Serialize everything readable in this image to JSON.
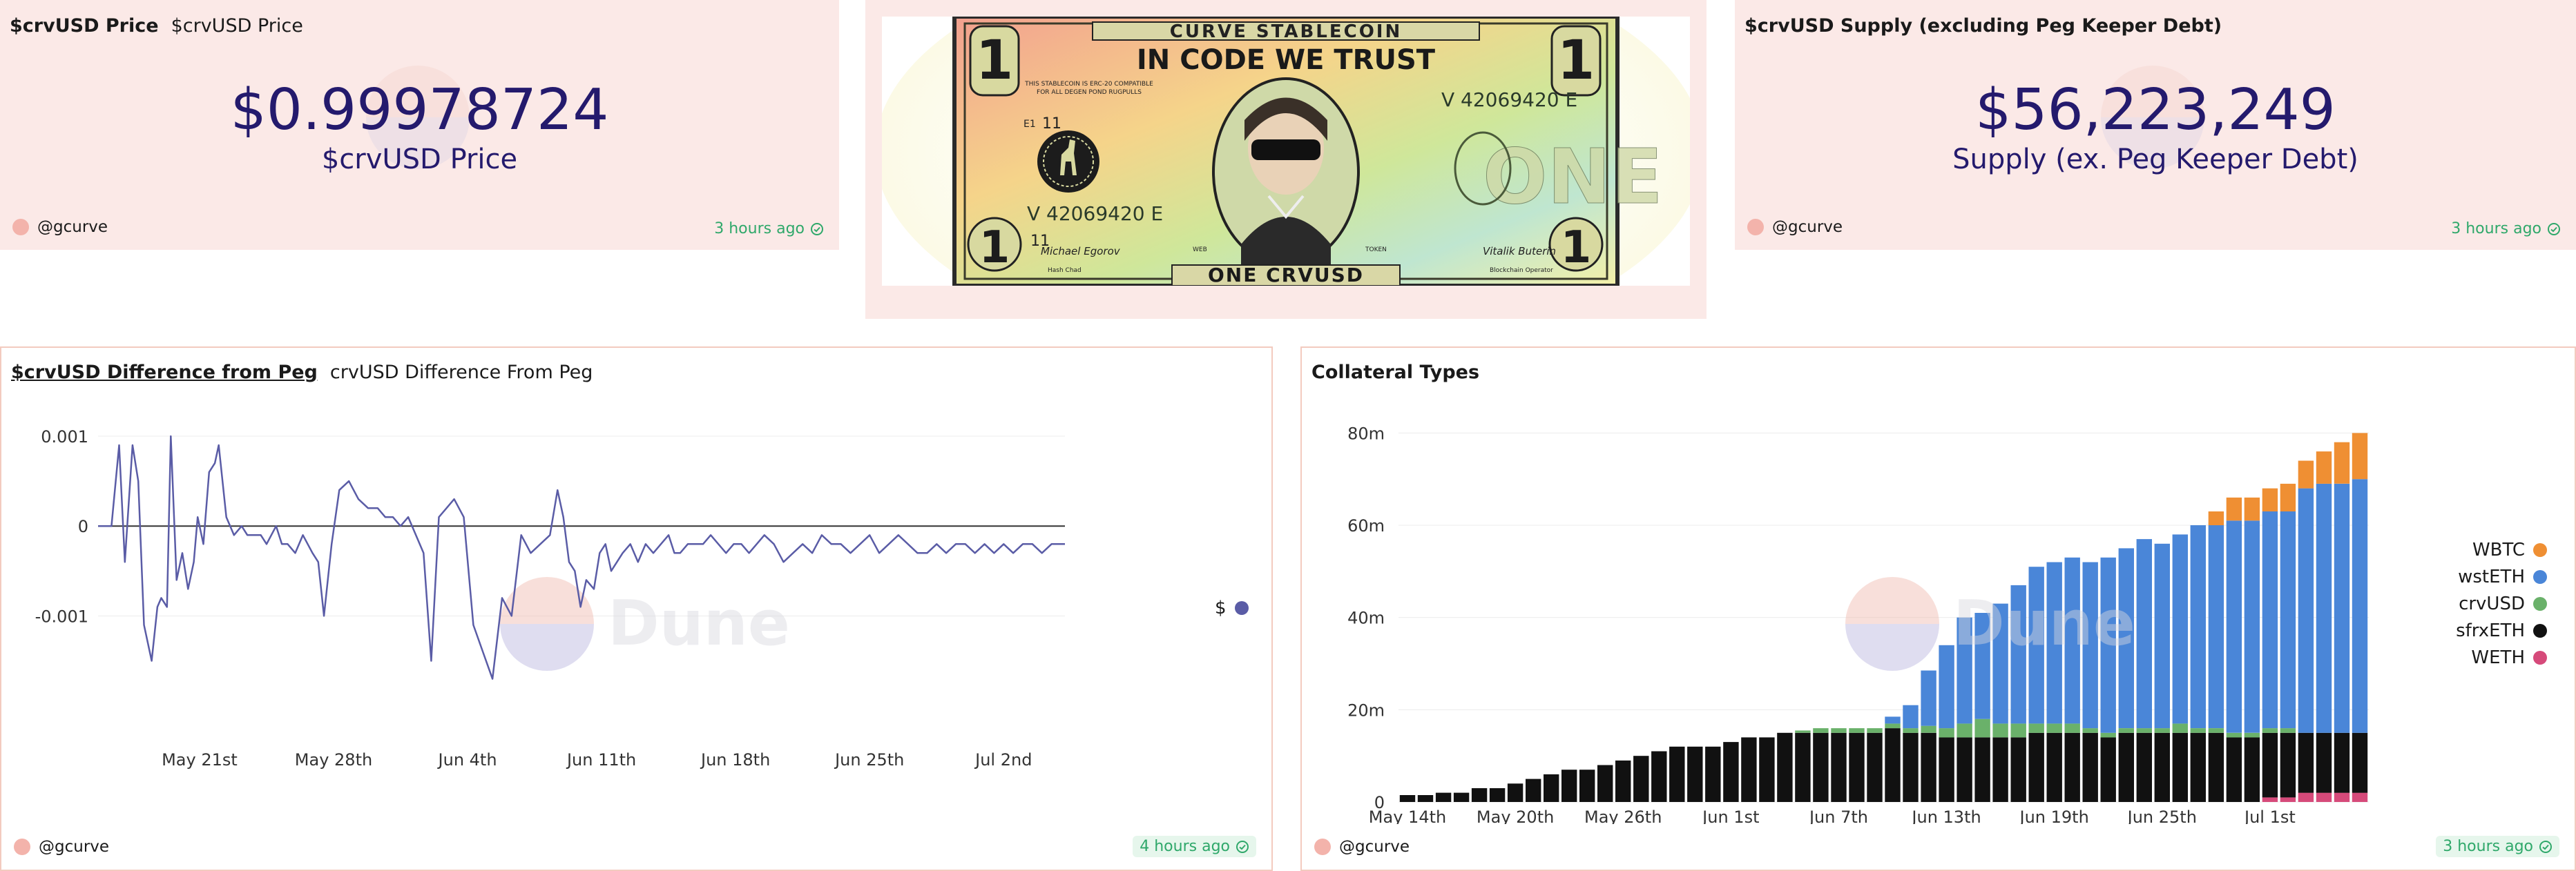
{
  "price_card": {
    "query_title": "$crvUSD Price",
    "viz_title": "$crvUSD Price",
    "value": "$0.99978724",
    "label": "$crvUSD Price",
    "author": "@gcurve",
    "updated": "3 hours ago"
  },
  "bill_card": {
    "top_banner": "CURVE STABLECOIN",
    "motto": "IN CODE WE TRUST",
    "serial": "V 42069420 E",
    "fine_print_1": "THIS STABLECOIN IS ERC-20 COMPATIBLE",
    "fine_print_2": "FOR ALL DEGEN POND RUGPULLS",
    "left_signature": "Michael Egorov",
    "right_signature": "Vitalik Buterin",
    "left_sub": "Hash Chad",
    "right_sub": "Blockchain Operator",
    "bottom_banner": "ONE CRVUSD",
    "corner_number": "1",
    "mark_left": "E1",
    "mark_num": "11",
    "center_word": "ONE",
    "side_left": "WEB",
    "side_right": "TOKEN"
  },
  "supply_card": {
    "query_title": "$crvUSD Supply (excluding Peg Keeper Debt)",
    "value": "$56,223,249",
    "label": "Supply (ex. Peg Keeper Debt)",
    "author": "@gcurve",
    "updated": "3 hours ago"
  },
  "peg_card": {
    "query_title": "$crvUSD Difference from Peg",
    "viz_title": "crvUSD Difference From Peg",
    "author": "@gcurve",
    "updated": "4 hours ago",
    "watermark": "Dune",
    "legend": [
      {
        "name": "$",
        "color": "#5a5ca6"
      }
    ]
  },
  "collateral_card": {
    "query_title": "Collateral Types",
    "author": "@gcurve",
    "updated": "3 hours ago",
    "watermark": "Dune",
    "legend": [
      {
        "name": "WBTC",
        "color": "#ef8f33"
      },
      {
        "name": "wstETH",
        "color": "#4a86d8"
      },
      {
        "name": "crvUSD",
        "color": "#6ab16a"
      },
      {
        "name": "sfrxETH",
        "color": "#111111"
      },
      {
        "name": "WETH",
        "color": "#d64a7a"
      }
    ]
  },
  "chart_data": [
    {
      "type": "line",
      "y_ticks": [
        0.001,
        0,
        -0.001
      ],
      "y_tick_labels": [
        "0.001",
        "0",
        "-0.001"
      ],
      "ylim": [
        -0.00178,
        0.0011
      ],
      "x_tick_labels": [
        "May 21st",
        "May 28th",
        "Jun 4th",
        "Jun 11th",
        "Jun 18th",
        "Jun 25th",
        "Jul 2nd"
      ],
      "x_tick_days": [
        0,
        7,
        14,
        21,
        28,
        35,
        42
      ],
      "xlim_days": [
        -5.3,
        45.2
      ],
      "series": [
        {
          "name": "$",
          "color": "#5a5ca6",
          "x_days": [
            -5.3,
            -4.6,
            -4.2,
            -3.9,
            -3.5,
            -3.2,
            -2.9,
            -2.5,
            -2.2,
            -2.0,
            -1.7,
            -1.5,
            -1.2,
            -0.9,
            -0.6,
            -0.3,
            -0.1,
            0.2,
            0.5,
            0.8,
            1.0,
            1.4,
            1.8,
            2.2,
            2.5,
            2.9,
            3.2,
            3.5,
            4.0,
            4.3,
            4.6,
            5.0,
            5.4,
            5.9,
            6.2,
            6.5,
            6.9,
            7.3,
            7.8,
            8.3,
            8.8,
            9.3,
            9.7,
            10.1,
            10.5,
            10.9,
            11.3,
            11.7,
            12.1,
            12.5,
            12.9,
            13.3,
            13.8,
            14.3,
            14.8,
            15.3,
            15.8,
            16.3,
            16.8,
            17.3,
            17.8,
            18.3,
            18.7,
            19.0,
            19.3,
            19.6,
            19.9,
            20.2,
            20.6,
            20.9,
            21.2,
            21.5,
            21.8,
            22.1,
            22.5,
            22.9,
            23.3,
            23.7,
            24.1,
            24.5,
            24.8,
            25.1,
            25.5,
            25.9,
            26.3,
            26.7,
            27.1,
            27.5,
            27.9,
            28.3,
            28.7,
            29.1,
            29.5,
            30.0,
            30.5,
            31.0,
            31.5,
            32.0,
            32.5,
            33.0,
            33.5,
            34.0,
            34.5,
            35.0,
            35.5,
            36.0,
            36.5,
            37.0,
            37.5,
            38.0,
            38.5,
            39.0,
            39.5,
            40.0,
            40.5,
            41.0,
            41.5,
            42.0,
            42.5,
            43.0,
            43.5,
            44.0,
            44.5,
            45.2
          ],
          "y": [
            0.0,
            0.0,
            0.0009,
            -0.0004,
            0.0009,
            0.0005,
            -0.0011,
            -0.0015,
            -0.0009,
            -0.0008,
            -0.0009,
            0.001,
            -0.0006,
            -0.0003,
            -0.0007,
            -0.0004,
            0.0001,
            -0.0002,
            0.0006,
            0.0007,
            0.0009,
            0.0001,
            -0.0001,
            0.0,
            -0.0001,
            -0.0001,
            -0.0001,
            -0.0002,
            0.0,
            -0.0002,
            -0.0002,
            -0.0003,
            -0.0001,
            -0.0003,
            -0.0004,
            -0.001,
            -0.0002,
            0.0004,
            0.0005,
            0.0003,
            0.0002,
            0.0002,
            0.0001,
            0.0001,
            0.0,
            0.0001,
            -0.0001,
            -0.0003,
            -0.0015,
            0.0001,
            0.0002,
            0.0003,
            0.0001,
            -0.0011,
            -0.0014,
            -0.0017,
            -0.0008,
            -0.001,
            -0.0001,
            -0.0003,
            -0.0002,
            -0.0001,
            0.0004,
            0.0001,
            -0.0004,
            -0.0005,
            -0.0009,
            -0.0006,
            -0.0007,
            -0.0003,
            -0.0002,
            -0.0005,
            -0.0004,
            -0.0003,
            -0.0002,
            -0.0004,
            -0.0002,
            -0.0003,
            -0.0002,
            -0.0001,
            -0.0003,
            -0.0003,
            -0.0002,
            -0.0002,
            -0.0002,
            -0.0001,
            -0.0002,
            -0.0003,
            -0.0002,
            -0.0002,
            -0.0003,
            -0.0002,
            -0.0001,
            -0.0002,
            -0.0004,
            -0.0003,
            -0.0002,
            -0.0003,
            -0.0001,
            -0.0002,
            -0.0002,
            -0.0003,
            -0.0002,
            -0.0001,
            -0.0003,
            -0.0002,
            -0.0001,
            -0.0002,
            -0.0003,
            -0.0003,
            -0.0002,
            -0.0003,
            -0.0002,
            -0.0002,
            -0.0003,
            -0.0002,
            -0.0003,
            -0.0002,
            -0.0003,
            -0.0002,
            -0.0002,
            -0.0003,
            -0.0002,
            -0.0002
          ]
        }
      ],
      "legend": "right"
    },
    {
      "type": "bar",
      "stacked": true,
      "y_ticks": [
        0,
        20,
        40,
        60,
        80
      ],
      "y_tick_labels": [
        "0",
        "20m",
        "40m",
        "60m",
        "80m"
      ],
      "ylim": [
        0,
        82
      ],
      "x_tick_labels": [
        "May 14th",
        "May 20th",
        "May 26th",
        "Jun 1st",
        "Jun 7th",
        "Jun 13th",
        "Jun 19th",
        "Jun 25th",
        "Jul 1st"
      ],
      "x_tick_index": [
        0,
        6,
        12,
        18,
        24,
        30,
        36,
        42,
        48
      ],
      "categories": [
        "May 14",
        "May 15",
        "May 16",
        "May 17",
        "May 18",
        "May 19",
        "May 20",
        "May 21",
        "May 22",
        "May 23",
        "May 24",
        "May 25",
        "May 26",
        "May 27",
        "May 28",
        "May 29",
        "May 30",
        "May 31",
        "Jun 1",
        "Jun 2",
        "Jun 3",
        "Jun 4",
        "Jun 5",
        "Jun 6",
        "Jun 7",
        "Jun 8",
        "Jun 9",
        "Jun 10",
        "Jun 11",
        "Jun 12",
        "Jun 13",
        "Jun 14",
        "Jun 15",
        "Jun 16",
        "Jun 17",
        "Jun 18",
        "Jun 19",
        "Jun 20",
        "Jun 21",
        "Jun 22",
        "Jun 23",
        "Jun 24",
        "Jun 25",
        "Jun 26",
        "Jun 27",
        "Jun 28",
        "Jun 29",
        "Jun 30",
        "Jul 1",
        "Jul 2",
        "Jul 3",
        "Jul 4",
        "Jul 5",
        "Jul 6"
      ],
      "series": [
        {
          "name": "WETH",
          "color": "#d64a7a",
          "values": [
            0,
            0,
            0,
            0,
            0,
            0,
            0,
            0,
            0,
            0,
            0,
            0,
            0,
            0,
            0,
            0,
            0,
            0,
            0,
            0,
            0,
            0,
            0,
            0,
            0,
            0,
            0,
            0,
            0,
            0,
            0,
            0,
            0,
            0,
            0,
            0,
            0,
            0,
            0,
            0,
            0,
            0,
            0,
            0,
            0,
            0,
            0,
            0,
            1,
            1,
            2,
            2,
            2,
            2
          ]
        },
        {
          "name": "sfrxETH",
          "color": "#111111",
          "values": [
            1.5,
            1.5,
            2,
            2,
            3,
            3,
            4,
            5,
            6,
            7,
            7,
            8,
            9,
            10,
            11,
            12,
            12,
            12,
            13,
            14,
            14,
            15,
            15,
            15,
            15,
            15,
            15,
            16,
            15,
            15,
            14,
            14,
            14,
            14,
            14,
            15,
            15,
            15,
            15,
            14,
            15,
            15,
            15,
            15,
            15,
            15,
            14,
            14,
            14,
            14,
            13,
            13,
            13,
            13
          ]
        },
        {
          "name": "crvUSD",
          "color": "#6ab16a",
          "values": [
            0,
            0,
            0,
            0,
            0,
            0,
            0,
            0,
            0,
            0,
            0,
            0,
            0,
            0,
            0,
            0,
            0,
            0,
            0,
            0,
            0,
            0,
            0.5,
            1,
            1,
            1,
            1,
            1,
            1,
            1.5,
            2,
            3,
            4,
            3,
            3,
            2,
            2,
            2,
            1,
            1,
            1,
            1,
            1,
            2,
            1,
            1,
            1,
            1,
            1,
            1,
            0,
            0,
            0,
            0
          ]
        },
        {
          "name": "wstETH",
          "color": "#4a86d8",
          "values": [
            0,
            0,
            0,
            0,
            0,
            0,
            0,
            0,
            0,
            0,
            0,
            0,
            0,
            0,
            0,
            0,
            0,
            0,
            0,
            0,
            0,
            0,
            0,
            0,
            0,
            0,
            0,
            1.5,
            5,
            12,
            18,
            23,
            23,
            26,
            30,
            34,
            35,
            36,
            36,
            38,
            39,
            41,
            40,
            41,
            44,
            44,
            46,
            46,
            47,
            47,
            53,
            54,
            54,
            55
          ]
        },
        {
          "name": "WBTC",
          "color": "#ef8f33",
          "values": [
            0,
            0,
            0,
            0,
            0,
            0,
            0,
            0,
            0,
            0,
            0,
            0,
            0,
            0,
            0,
            0,
            0,
            0,
            0,
            0,
            0,
            0,
            0,
            0,
            0,
            0,
            0,
            0,
            0,
            0,
            0,
            0,
            0,
            0,
            0,
            0,
            0,
            0,
            0,
            0,
            0,
            0,
            0,
            0,
            0,
            3,
            5,
            5,
            5,
            6,
            6,
            7,
            9,
            10
          ]
        }
      ],
      "legend": "right"
    }
  ]
}
